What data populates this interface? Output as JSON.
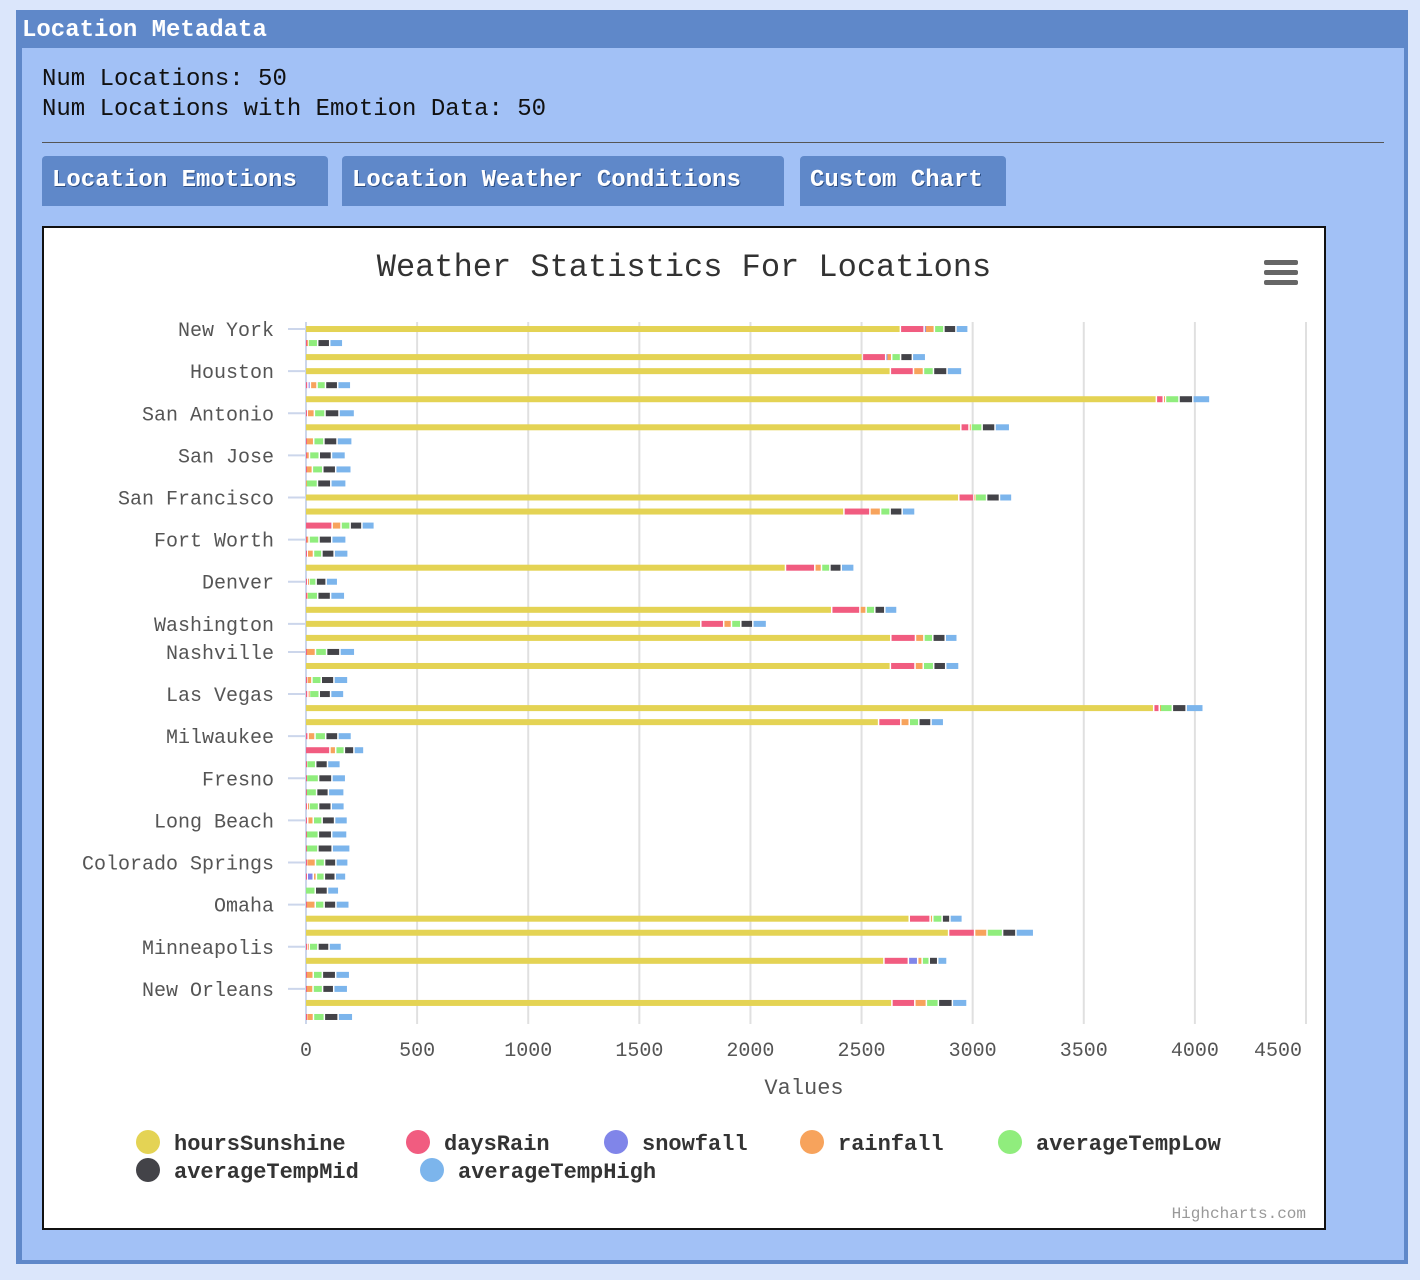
{
  "panel": {
    "title": "Location Metadata"
  },
  "meta": {
    "num_locations_label": "Num Locations: 50",
    "num_emotion_label": "Num Locations with Emotion Data: 50"
  },
  "tabs": [
    {
      "label": "Location Emotions"
    },
    {
      "label": "Location Weather Conditions"
    },
    {
      "label": "Custom Chart"
    }
  ],
  "chart": {
    "menu_icon": "hamburger-menu-icon",
    "credits": "Highcharts.com"
  },
  "chart_data": {
    "type": "bar",
    "title": "Weather Statistics For Locations",
    "xlabel": "Values",
    "xlim": [
      0,
      4500
    ],
    "x_ticks": [
      "0",
      "500",
      "1000",
      "1500",
      "2000",
      "2500",
      "3000",
      "3500",
      "4000",
      "4500"
    ],
    "grid": true,
    "stacked": true,
    "legend_position": "bottom",
    "series_meta": [
      {
        "name": "hoursSunshine",
        "color": "#e4d354"
      },
      {
        "name": "daysRain",
        "color": "#f15c80"
      },
      {
        "name": "snowfall",
        "color": "#8085e9"
      },
      {
        "name": "rainfall",
        "color": "#f7a35c"
      },
      {
        "name": "averageTempLow",
        "color": "#90ed7d"
      },
      {
        "name": "averageTempMid",
        "color": "#434348"
      },
      {
        "name": "averageTempHigh",
        "color": "#7cb5ec"
      }
    ],
    "category_labels": [
      "New York",
      "Houston",
      "San Antonio",
      "San Jose",
      "San Francisco",
      "Fort Worth",
      "Denver",
      "Washington",
      "Nashville",
      "Las Vegas",
      "Milwaukee",
      "Fresno",
      "Long Beach",
      "Colorado Springs",
      "Omaha",
      "Minneapolis",
      "New Orleans"
    ],
    "rows": [
      {
        "label": "New York",
        "values": [
          2678,
          107,
          4,
          42,
          43,
          54,
          55
        ]
      },
      {
        "label": "",
        "values": [
          0,
          5,
          0,
          8,
          43,
          54,
          59
        ]
      },
      {
        "label": "",
        "values": [
          2507,
          105,
          4,
          23,
          40,
          53,
          60
        ]
      },
      {
        "label": "Houston",
        "values": [
          2633,
          104,
          0,
          45,
          45,
          61,
          67
        ]
      },
      {
        "label": "",
        "values": [
          0,
          12,
          11,
          30,
          38,
          55,
          59
        ]
      },
      {
        "label": "",
        "values": [
          3830,
          31,
          0,
          10,
          61,
          62,
          77
        ]
      },
      {
        "label": "San Antonio",
        "values": [
          0,
          9,
          0,
          32,
          48,
          63,
          70
        ]
      },
      {
        "label": "",
        "values": [
          2950,
          37,
          0,
          9,
          50,
          58,
          66
        ]
      },
      {
        "label": "",
        "values": [
          0,
          4,
          0,
          34,
          46,
          59,
          68
        ]
      },
      {
        "label": "San Jose",
        "values": [
          0,
          4,
          0,
          15,
          44,
          55,
          63
        ]
      },
      {
        "label": "",
        "values": [
          0,
          4,
          0,
          28,
          47,
          58,
          70
        ]
      },
      {
        "label": "",
        "values": [
          0,
          0,
          0,
          4,
          51,
          60,
          69
        ]
      },
      {
        "label": "San Francisco",
        "values": [
          2941,
          67,
          0,
          7,
          51,
          58,
          56
        ]
      },
      {
        "label": "",
        "values": [
          2424,
          117,
          0,
          48,
          43,
          54,
          58
        ]
      },
      {
        "label": "",
        "values": [
          0,
          121,
          0,
          40,
          41,
          53,
          56
        ]
      },
      {
        "label": "Fort Worth",
        "values": [
          0,
          4,
          0,
          13,
          45,
          57,
          65
        ]
      },
      {
        "label": "",
        "values": [
          0,
          9,
          0,
          28,
          38,
          55,
          63
        ]
      },
      {
        "label": "",
        "values": [
          2161,
          132,
          0,
          30,
          38,
          51,
          58
        ]
      },
      {
        "label": "Denver",
        "values": [
          0,
          9,
          0,
          8,
          32,
          45,
          52
        ]
      },
      {
        "label": "",
        "values": [
          0,
          6,
          0,
          3,
          47,
          58,
          64
        ]
      },
      {
        "label": "",
        "values": [
          2369,
          127,
          0,
          28,
          39,
          45,
          55
        ]
      },
      {
        "label": "Washington",
        "values": [
          1780,
          103,
          0,
          35,
          42,
          54,
          62
        ]
      },
      {
        "label": "",
        "values": [
          2635,
          111,
          0,
          38,
          40,
          56,
          54
        ]
      },
      {
        "label": "Nashville",
        "values": [
          0,
          4,
          0,
          42,
          50,
          60,
          67
        ]
      },
      {
        "label": "",
        "values": [
          2633,
          111,
          0,
          37,
          47,
          54,
          60
        ]
      },
      {
        "label": "",
        "values": [
          0,
          7,
          0,
          23,
          42,
          57,
          63
        ]
      },
      {
        "label": "Las Vegas",
        "values": [
          0,
          12,
          0,
          7,
          44,
          51,
          60
        ]
      },
      {
        "label": "",
        "values": [
          3818,
          25,
          0,
          4,
          55,
          62,
          77
        ]
      },
      {
        "label": "",
        "values": [
          2580,
          100,
          0,
          38,
          43,
          55,
          57
        ]
      },
      {
        "label": "Milwaukee",
        "values": [
          0,
          13,
          0,
          31,
          48,
          55,
          61
        ]
      },
      {
        "label": "",
        "values": [
          0,
          111,
          0,
          26,
          39,
          43,
          45
        ]
      },
      {
        "label": "",
        "values": [
          0,
          6,
          0,
          0,
          41,
          53,
          58
        ]
      },
      {
        "label": "Fresno",
        "values": [
          0,
          5,
          0,
          0,
          55,
          60,
          62
        ]
      },
      {
        "label": "",
        "values": [
          0,
          4,
          0,
          0,
          47,
          53,
          71
        ]
      },
      {
        "label": "",
        "values": [
          0,
          9,
          0,
          8,
          43,
          57,
          59
        ]
      },
      {
        "label": "Long Beach",
        "values": [
          0,
          11,
          0,
          25,
          40,
          56,
          58
        ]
      },
      {
        "label": "",
        "values": [
          0,
          4,
          0,
          0,
          55,
          60,
          69
        ]
      },
      {
        "label": "",
        "values": [
          0,
          4,
          0,
          0,
          53,
          64,
          81
        ]
      },
      {
        "label": "Colorado Springs",
        "values": [
          0,
          6,
          0,
          40,
          41,
          51,
          55
        ]
      },
      {
        "label": "",
        "values": [
          0,
          9,
          27,
          14,
          36,
          49,
          48
        ]
      },
      {
        "label": "",
        "values": [
          0,
          0,
          0,
          0,
          45,
          55,
          51
        ]
      },
      {
        "label": "Omaha",
        "values": [
          0,
          4,
          0,
          41,
          40,
          53,
          60
        ]
      },
      {
        "label": "",
        "values": [
          2718,
          94,
          0,
          12,
          42,
          35,
          56
        ]
      },
      {
        "label": "",
        "values": [
          2895,
          117,
          0,
          56,
          70,
          60,
          80
        ]
      },
      {
        "label": "Minneapolis",
        "values": [
          0,
          8,
          0,
          10,
          39,
          50,
          56
        ]
      },
      {
        "label": "",
        "values": [
          2604,
          110,
          42,
          20,
          32,
          38,
          42
        ]
      },
      {
        "label": "",
        "values": [
          0,
          4,
          0,
          32,
          41,
          60,
          63
        ]
      },
      {
        "label": "New Orleans",
        "values": [
          0,
          4,
          0,
          31,
          43,
          50,
          63
        ]
      },
      {
        "label": "",
        "values": [
          2640,
          103,
          0,
          52,
          54,
          63,
          66
        ]
      },
      {
        "label": "",
        "values": [
          0,
          6,
          0,
          31,
          49,
          62,
          66
        ]
      }
    ]
  }
}
